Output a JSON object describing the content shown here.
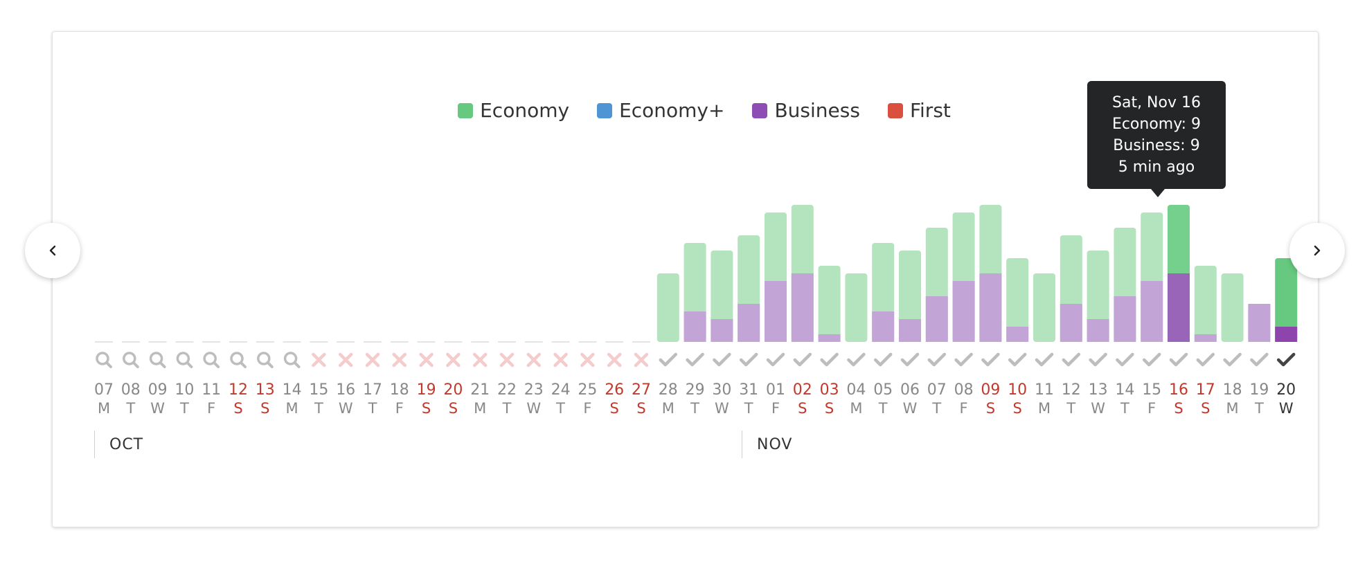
{
  "legend": [
    {
      "label": "Economy",
      "color": "#66c97f"
    },
    {
      "label": "Economy+",
      "color": "#4f94d4"
    },
    {
      "label": "Business",
      "color": "#8e4db5"
    },
    {
      "label": "First",
      "color": "#d9503f"
    }
  ],
  "tooltip": {
    "date": "Sat, Nov 16",
    "economy": "Economy: 9",
    "business": "Business: 9",
    "age": "5 min ago"
  },
  "months": [
    "OCT",
    "NOV"
  ],
  "colors": {
    "economy_light": "#b3e4bd",
    "economy_dark": "#75d08e",
    "business_light": "#c2a4d6",
    "business_dark": "#9965b8",
    "today_economy": "#66c97f",
    "today_business": "#8e44ad",
    "weekend_text": "#c0392b",
    "weekday_text": "#888888",
    "search_icon": "#bdbdbd",
    "cross_icon": "#f5cccc",
    "check_icon": "#bdbdbd",
    "check_icon_today": "#444444"
  },
  "chart_data": {
    "type": "bar",
    "stacked": true,
    "categories": [
      "07",
      "08",
      "09",
      "10",
      "11",
      "12",
      "13",
      "14",
      "15",
      "16",
      "17",
      "18",
      "19",
      "20",
      "21",
      "22",
      "23",
      "24",
      "25",
      "26",
      "27",
      "28",
      "29",
      "30",
      "31",
      "01",
      "02",
      "03",
      "04",
      "05",
      "06",
      "07",
      "08",
      "09",
      "10",
      "11",
      "12",
      "13",
      "14",
      "15",
      "16",
      "17",
      "18",
      "19",
      "20"
    ],
    "weekdays": [
      "M",
      "T",
      "W",
      "T",
      "F",
      "S",
      "S",
      "M",
      "T",
      "W",
      "T",
      "F",
      "S",
      "S",
      "M",
      "T",
      "W",
      "T",
      "F",
      "S",
      "S",
      "M",
      "T",
      "W",
      "T",
      "F",
      "S",
      "S",
      "M",
      "T",
      "W",
      "T",
      "F",
      "S",
      "S",
      "M",
      "T",
      "W",
      "T",
      "F",
      "S",
      "S",
      "M",
      "T",
      "W"
    ],
    "weekend": [
      false,
      false,
      false,
      false,
      false,
      true,
      true,
      false,
      false,
      false,
      false,
      false,
      true,
      true,
      false,
      false,
      false,
      false,
      false,
      true,
      true,
      false,
      false,
      false,
      false,
      false,
      true,
      true,
      false,
      false,
      false,
      false,
      false,
      true,
      true,
      false,
      false,
      false,
      false,
      false,
      true,
      true,
      false,
      false,
      false
    ],
    "status": [
      "search",
      "search",
      "search",
      "search",
      "search",
      "search",
      "search",
      "search",
      "none",
      "none",
      "none",
      "none",
      "none",
      "none",
      "none",
      "none",
      "none",
      "none",
      "none",
      "none",
      "none",
      "ok",
      "ok",
      "ok",
      "ok",
      "ok",
      "ok",
      "ok",
      "ok",
      "ok",
      "ok",
      "ok",
      "ok",
      "ok",
      "ok",
      "ok",
      "ok",
      "ok",
      "ok",
      "ok",
      "ok",
      "ok",
      "ok",
      "ok",
      "ok"
    ],
    "series": [
      {
        "name": "Economy",
        "values": [
          0,
          0,
          0,
          0,
          0,
          0,
          0,
          0,
          0,
          0,
          0,
          0,
          0,
          0,
          0,
          0,
          0,
          0,
          0,
          0,
          0,
          9,
          9,
          9,
          9,
          9,
          9,
          9,
          9,
          9,
          9,
          9,
          9,
          9,
          9,
          9,
          9,
          9,
          9,
          9,
          9,
          9,
          9,
          0,
          9
        ]
      },
      {
        "name": "Economy+",
        "values": [
          0,
          0,
          0,
          0,
          0,
          0,
          0,
          0,
          0,
          0,
          0,
          0,
          0,
          0,
          0,
          0,
          0,
          0,
          0,
          0,
          0,
          0,
          0,
          0,
          0,
          0,
          0,
          0,
          0,
          0,
          0,
          0,
          0,
          0,
          0,
          0,
          0,
          0,
          0,
          0,
          0,
          0,
          0,
          0,
          0
        ]
      },
      {
        "name": "Business",
        "values": [
          0,
          0,
          0,
          0,
          0,
          0,
          0,
          0,
          0,
          0,
          0,
          0,
          0,
          0,
          0,
          0,
          0,
          0,
          0,
          0,
          0,
          0,
          4,
          3,
          5,
          8,
          9,
          1,
          0,
          4,
          3,
          6,
          8,
          9,
          2,
          0,
          5,
          3,
          6,
          8,
          9,
          1,
          0,
          5,
          2
        ]
      },
      {
        "name": "First",
        "values": [
          0,
          0,
          0,
          0,
          0,
          0,
          0,
          0,
          0,
          0,
          0,
          0,
          0,
          0,
          0,
          0,
          0,
          0,
          0,
          0,
          0,
          0,
          0,
          0,
          0,
          0,
          0,
          0,
          0,
          0,
          0,
          0,
          0,
          0,
          0,
          0,
          0,
          0,
          0,
          0,
          0,
          0,
          0,
          0,
          0
        ]
      }
    ],
    "month_starts": [
      0,
      25
    ],
    "highlight_index": 40,
    "today_index": 44,
    "ylim": [
      0,
      18
    ]
  }
}
